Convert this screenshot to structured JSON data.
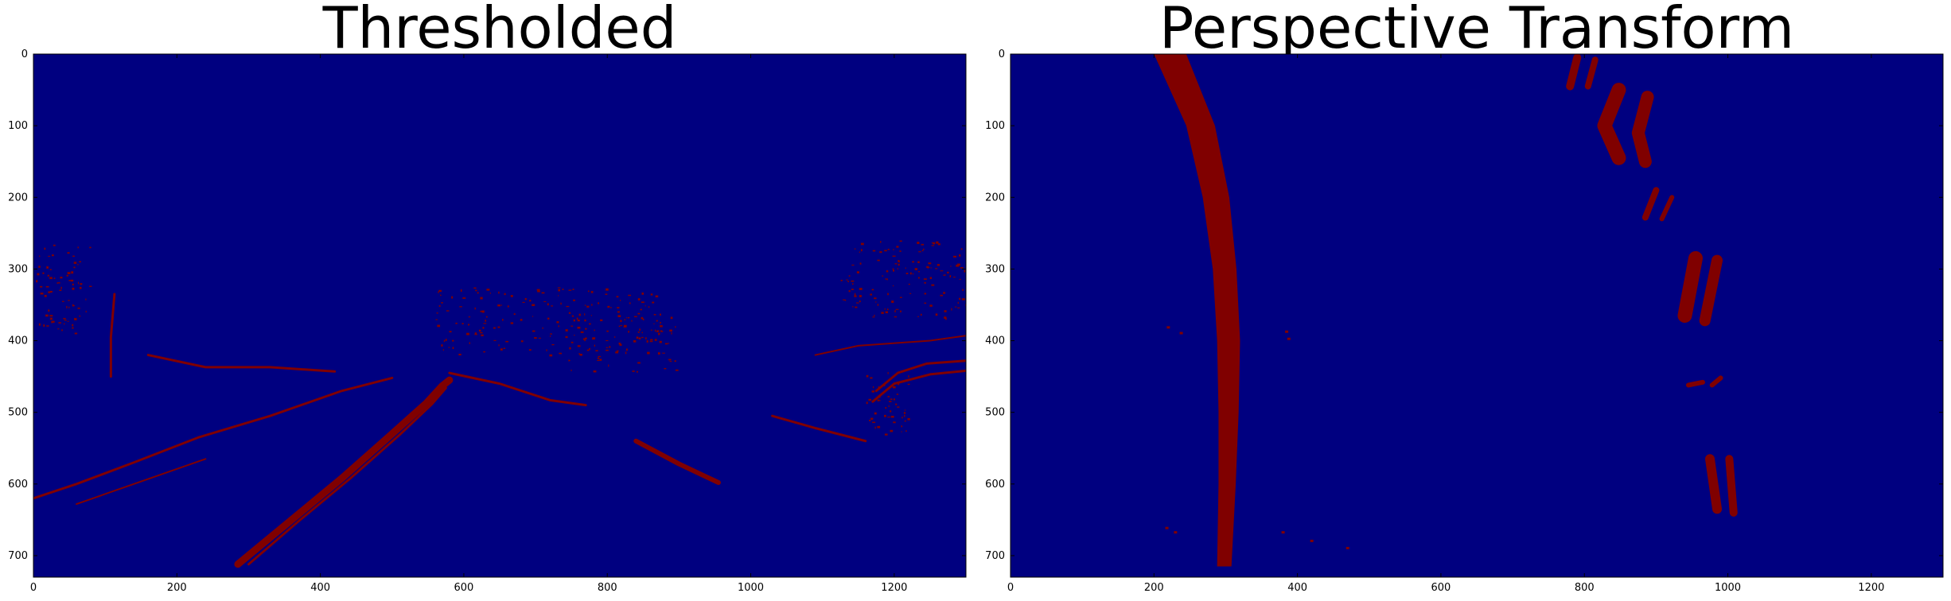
{
  "chart_data": [
    {
      "type": "heatmap",
      "title": "Thresholded",
      "xlabel": "",
      "ylabel": "",
      "xlim": [
        0,
        1300
      ],
      "ylim": [
        730,
        0
      ],
      "xticks": [
        0,
        200,
        400,
        600,
        800,
        1000,
        1200
      ],
      "yticks": [
        0,
        100,
        200,
        300,
        400,
        500,
        600,
        700
      ],
      "colormap": {
        "background": "#000080",
        "foreground": "#800000"
      },
      "features": {
        "lines": [
          {
            "name": "left-lane-outer",
            "points": [
              [
                285,
                712
              ],
              [
                360,
                650
              ],
              [
                430,
                592
              ],
              [
                500,
                530
              ],
              [
                548,
                487
              ],
              [
                570,
                463
              ],
              [
                580,
                455
              ]
            ],
            "width": 9
          },
          {
            "name": "left-lane-inner",
            "points": [
              [
                300,
                712
              ],
              [
                372,
                650
              ],
              [
                442,
                592
              ],
              [
                512,
                530
              ],
              [
                556,
                488
              ],
              [
                575,
                466
              ]
            ],
            "width": 3
          },
          {
            "name": "right-dash",
            "points": [
              [
                840,
                540
              ],
              [
                900,
                572
              ],
              [
                955,
                598
              ]
            ],
            "width": 6
          },
          {
            "name": "right-dash-2",
            "points": [
              [
                1030,
                505
              ],
              [
                1090,
                522
              ],
              [
                1160,
                540
              ]
            ],
            "width": 3
          },
          {
            "name": "road-edge-left",
            "points": [
              [
                0,
                620
              ],
              [
                60,
                600
              ],
              [
                140,
                570
              ],
              [
                230,
                535
              ],
              [
                330,
                505
              ],
              [
                430,
                470
              ],
              [
                500,
                452
              ]
            ],
            "width": 3
          },
          {
            "name": "road-edge-left-2",
            "points": [
              [
                60,
                628
              ],
              [
                140,
                600
              ],
              [
                240,
                565
              ]
            ],
            "width": 2
          },
          {
            "name": "horizon-left",
            "points": [
              [
                160,
                420
              ],
              [
                240,
                437
              ],
              [
                330,
                437
              ],
              [
                420,
                443
              ]
            ],
            "width": 3
          },
          {
            "name": "horizon-right",
            "points": [
              [
                580,
                445
              ],
              [
                650,
                460
              ],
              [
                720,
                483
              ],
              [
                770,
                490
              ]
            ],
            "width": 3
          },
          {
            "name": "post",
            "points": [
              [
                113,
                335
              ],
              [
                108,
                395
              ],
              [
                108,
                450
              ]
            ],
            "width": 3
          },
          {
            "name": "right-edge-1",
            "points": [
              [
                1090,
                420
              ],
              [
                1150,
                407
              ],
              [
                1250,
                400
              ],
              [
                1300,
                393
              ]
            ],
            "width": 2
          },
          {
            "name": "car-arc-1",
            "points": [
              [
                1175,
                470
              ],
              [
                1205,
                445
              ],
              [
                1245,
                432
              ],
              [
                1300,
                428
              ]
            ],
            "width": 3
          },
          {
            "name": "car-arc-2",
            "points": [
              [
                1170,
                485
              ],
              [
                1200,
                460
              ],
              [
                1250,
                447
              ],
              [
                1300,
                442
              ]
            ],
            "width": 3
          }
        ],
        "blobs": [
          {
            "name": "vegetation-left",
            "x": [
              0,
              80
            ],
            "y": [
              265,
              390
            ],
            "density": 0.45
          },
          {
            "name": "vegetation-center",
            "x": [
              560,
              880
            ],
            "y": [
              325,
              420
            ],
            "density": 0.35
          },
          {
            "name": "vegetation-center-2",
            "x": [
              740,
              900
            ],
            "y": [
              360,
              445
            ],
            "density": 0.28
          },
          {
            "name": "vegetation-right",
            "x": [
              1120,
              1300
            ],
            "y": [
              260,
              370
            ],
            "density": 0.4
          },
          {
            "name": "car",
            "x": [
              1160,
              1220
            ],
            "y": [
              440,
              530
            ],
            "density": 0.55
          }
        ]
      }
    },
    {
      "type": "heatmap",
      "title": "Perspective Transform",
      "xlabel": "",
      "ylabel": "",
      "xlim": [
        0,
        1300
      ],
      "ylim": [
        730,
        0
      ],
      "xticks": [
        0,
        200,
        400,
        600,
        800,
        1000,
        1200
      ],
      "yticks": [
        0,
        100,
        200,
        300,
        400,
        500,
        600,
        700
      ],
      "colormap": {
        "background": "#000080",
        "foreground": "#800000"
      },
      "features": {
        "bands": [
          {
            "name": "left-lane-band",
            "left": [
              [
                200,
                0
              ],
              [
                245,
                100
              ],
              [
                268,
                200
              ],
              [
                282,
                300
              ],
              [
                288,
                400
              ],
              [
                290,
                500
              ],
              [
                290,
                600
              ],
              [
                288,
                715
              ]
            ],
            "right": [
              [
                245,
                0
              ],
              [
                285,
                100
              ],
              [
                305,
                200
              ],
              [
                315,
                300
              ],
              [
                320,
                400
              ],
              [
                318,
                500
              ],
              [
                314,
                600
              ],
              [
                308,
                715
              ]
            ]
          }
        ],
        "segments": [
          {
            "name": "right-dash-a",
            "points": [
              [
                790,
                5
              ],
              [
                780,
                45
              ]
            ],
            "width": 10
          },
          {
            "name": "right-dash-b",
            "points": [
              [
                815,
                8
              ],
              [
                805,
                45
              ]
            ],
            "width": 8
          },
          {
            "name": "right-dash-c",
            "points": [
              [
                848,
                50
              ],
              [
                828,
                100
              ],
              [
                848,
                145
              ]
            ],
            "width": 18
          },
          {
            "name": "right-dash-d",
            "points": [
              [
                888,
                60
              ],
              [
                875,
                110
              ],
              [
                885,
                150
              ]
            ],
            "width": 16
          },
          {
            "name": "right-dash-e",
            "points": [
              [
                900,
                190
              ],
              [
                885,
                228
              ]
            ],
            "width": 8
          },
          {
            "name": "right-dash-f",
            "points": [
              [
                922,
                200
              ],
              [
                908,
                230
              ]
            ],
            "width": 6
          },
          {
            "name": "right-dash-g",
            "points": [
              [
                955,
                285
              ],
              [
                940,
                365
              ]
            ],
            "width": 18
          },
          {
            "name": "right-dash-h",
            "points": [
              [
                985,
                288
              ],
              [
                968,
                372
              ]
            ],
            "width": 14
          },
          {
            "name": "right-dash-i",
            "points": [
              [
                945,
                462
              ],
              [
                965,
                458
              ]
            ],
            "width": 6
          },
          {
            "name": "right-dash-j",
            "points": [
              [
                978,
                462
              ],
              [
                990,
                452
              ]
            ],
            "width": 6
          },
          {
            "name": "right-dash-k",
            "points": [
              [
                975,
                565
              ],
              [
                985,
                635
              ]
            ],
            "width": 12
          },
          {
            "name": "right-dash-l",
            "points": [
              [
                1002,
                565
              ],
              [
                1008,
                640
              ]
            ],
            "width": 10
          },
          {
            "name": "left-lane-streak-1",
            "points": [
              [
                255,
                60
              ],
              [
                275,
                105
              ]
            ],
            "width": 4
          },
          {
            "name": "left-lane-streak-2",
            "points": [
              [
                260,
                120
              ],
              [
                278,
                165
              ]
            ],
            "width": 4
          }
        ],
        "specks": [
          [
            220,
            382
          ],
          [
            238,
            390
          ],
          [
            218,
            662
          ],
          [
            230,
            668
          ],
          [
            380,
            668
          ],
          [
            470,
            690
          ],
          [
            420,
            680
          ],
          [
            385,
            388
          ],
          [
            388,
            398
          ]
        ]
      }
    }
  ]
}
